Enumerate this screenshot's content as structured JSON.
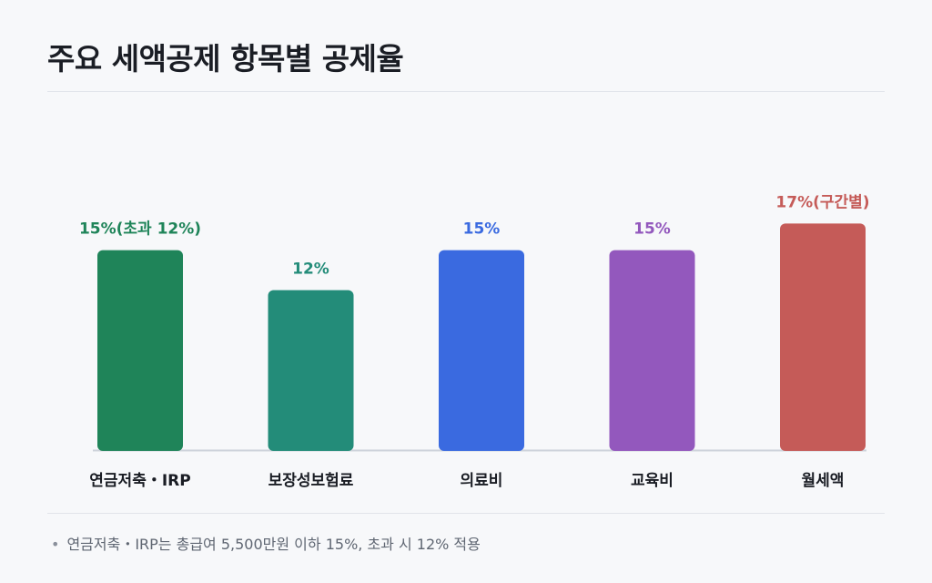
{
  "title": "주요 세액공제 항목별 공제율",
  "chart_data": {
    "type": "bar",
    "categories": [
      "연금저축・IRP",
      "보장성보험료",
      "의료비",
      "교육비",
      "월세액"
    ],
    "values": [
      15,
      12,
      15,
      15,
      17
    ],
    "value_labels": [
      "15%(초과 12%)",
      "12%",
      "15%",
      "15%",
      "17%(구간별)"
    ],
    "colors": [
      "#1f8459",
      "#238c79",
      "#3a6ae0",
      "#9358bd",
      "#c55b58"
    ],
    "ylim": [
      0,
      17.5
    ],
    "grid": false,
    "legend": "none"
  },
  "footnote": {
    "bullet": "•",
    "text": "연금저축・IRP는 총급여 5,500만원 이하 15%, 초과 시 12% 적용"
  }
}
